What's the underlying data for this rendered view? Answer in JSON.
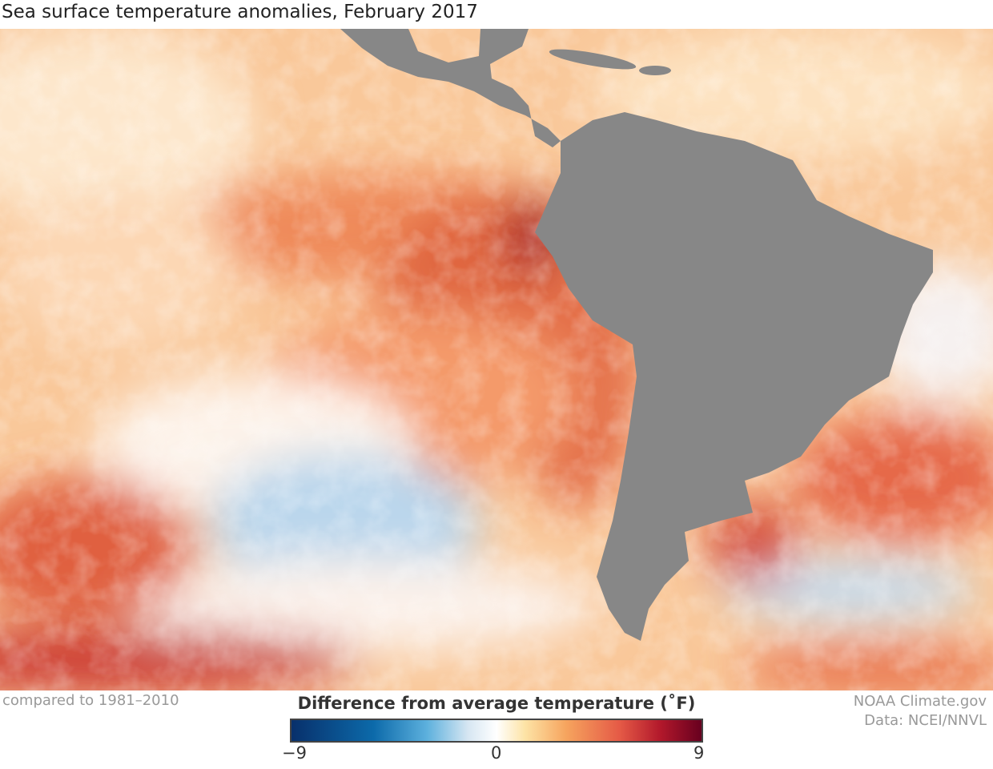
{
  "title": "Sea surface temperature anomalies, February 2017",
  "note": "compared to 1981–2010",
  "credit": {
    "line1": "NOAA Climate.gov",
    "line2": "Data: NCEI/NNVL"
  },
  "legend": {
    "title": "Difference from average temperature (˚F)",
    "min_label": "−9",
    "mid_label": "0",
    "max_label": "9",
    "range": [
      -9,
      9
    ],
    "colors": [
      "#08306b",
      "#0c6aaa",
      "#5cb0dd",
      "#ffffff",
      "#f6a45e",
      "#e55a46",
      "#b2182b",
      "#67001f"
    ]
  },
  "colors": {
    "land": "#878787",
    "base_anomaly": "#fbd2a6"
  }
}
